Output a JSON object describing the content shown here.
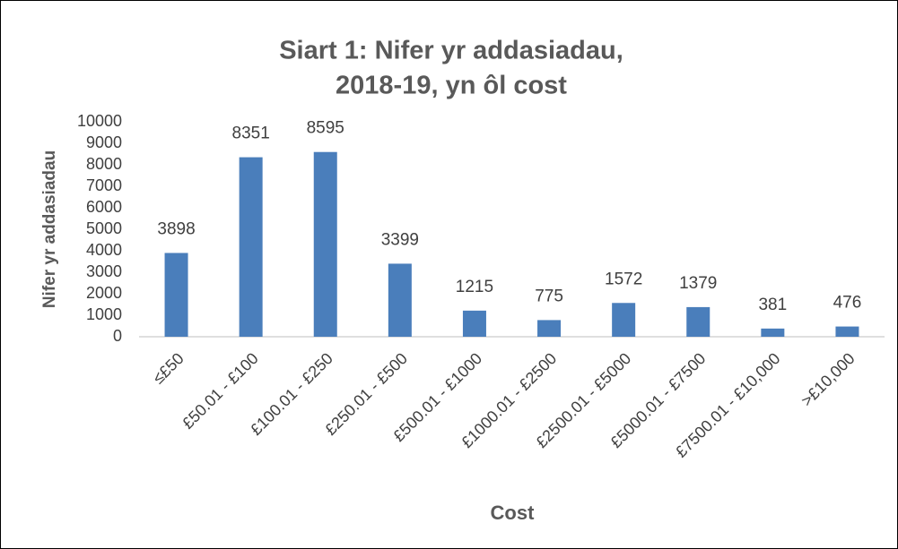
{
  "chart_data": {
    "type": "bar",
    "title": [
      "Siart 1: Nifer yr addasiadau,",
      "2018-19, yn ôl cost"
    ],
    "x_label": "Cost",
    "y_label": "Nifer yr addasiadau",
    "categories": [
      "≤£50",
      "£50.01 - £100",
      "£100.01 - £250",
      "£250.01 - £500",
      "£500.01 - £1000",
      "£1000.01 - £2500",
      "£2500.01 - £5000",
      "£5000.01 - £7500",
      "£7500.01 - £10,000",
      ">£10,000"
    ],
    "values": [
      3898,
      8351,
      8595,
      3399,
      1215,
      775,
      1572,
      1379,
      381,
      476
    ],
    "color": "#4a7ebb",
    "ylim": [
      0,
      10000
    ],
    "yticks": [
      0,
      1000,
      2000,
      3000,
      4000,
      5000,
      6000,
      7000,
      8000,
      9000,
      10000
    ],
    "grid": false
  }
}
